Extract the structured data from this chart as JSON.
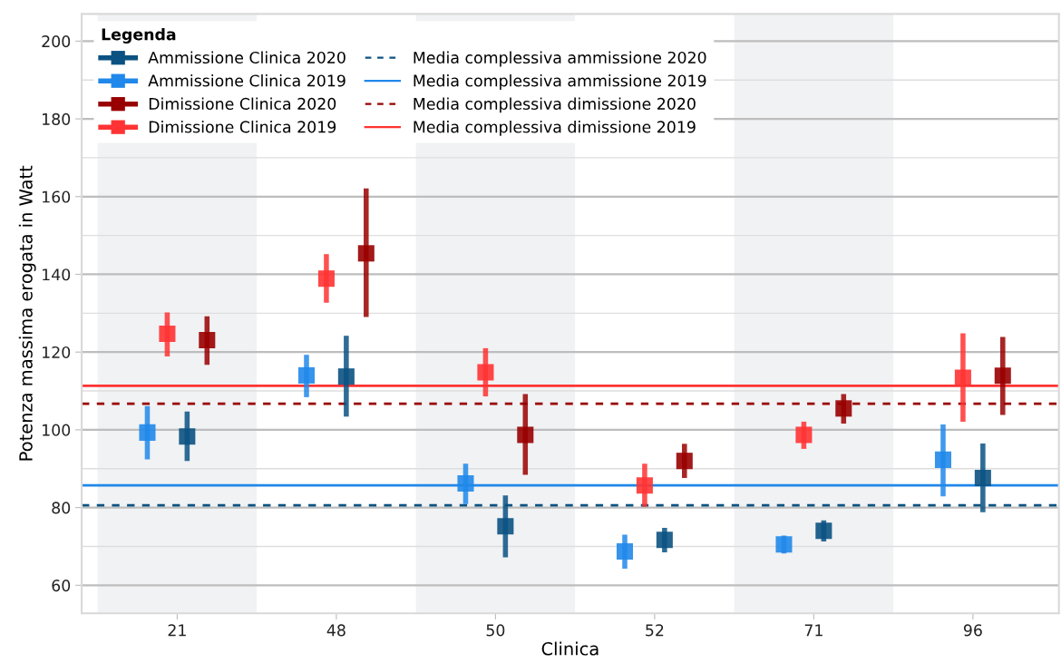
{
  "chart_data": {
    "type": "scatter",
    "xlabel": "Clinica",
    "ylabel": "Potenza massima erogata in Watt",
    "legend_title": "Legenda",
    "categories": [
      "21",
      "48",
      "50",
      "52",
      "71",
      "96"
    ],
    "series": [
      {
        "name": "Ammissione Clinica 2020",
        "color": "#0b5282",
        "values": [
          98.3,
          113.7,
          75.2,
          71.7,
          74.0,
          87.6
        ],
        "errors": [
          [
            92.0,
            104.7
          ],
          [
            103.4,
            124.2
          ],
          [
            67.2,
            83.1
          ],
          [
            68.5,
            74.8
          ],
          [
            71.3,
            76.7
          ],
          [
            78.8,
            96.5
          ]
        ]
      },
      {
        "name": "Ammissione Clinica 2019",
        "color": "#2088ea",
        "values": [
          99.3,
          114.0,
          86.2,
          68.7,
          70.5,
          92.3
        ],
        "errors": [
          [
            92.4,
            106.1
          ],
          [
            108.4,
            119.3
          ],
          [
            80.9,
            91.3
          ],
          [
            64.3,
            73.0
          ],
          [
            68.2,
            72.8
          ],
          [
            82.9,
            101.4
          ]
        ]
      },
      {
        "name": "Dimissione Clinica 2020",
        "color": "#990000",
        "values": [
          123.1,
          145.4,
          98.7,
          92.0,
          105.5,
          113.9
        ],
        "errors": [
          [
            116.7,
            129.2
          ],
          [
            129.0,
            162.1
          ],
          [
            88.4,
            109.2
          ],
          [
            87.6,
            96.4
          ],
          [
            101.6,
            109.2
          ],
          [
            103.8,
            123.9
          ]
        ]
      },
      {
        "name": "Dimissione Clinica 2019",
        "color": "#ff3333",
        "values": [
          124.7,
          138.9,
          114.8,
          85.7,
          98.7,
          113.4
        ],
        "errors": [
          [
            118.9,
            130.2
          ],
          [
            132.7,
            145.2
          ],
          [
            108.6,
            121.0
          ],
          [
            80.2,
            91.3
          ],
          [
            95.1,
            102.1
          ],
          [
            102.1,
            124.8
          ]
        ]
      }
    ],
    "ref_lines": [
      {
        "axis": "y",
        "value": 80.6,
        "label": "Media complessiva ammissione 2020",
        "color": "#0b5282",
        "line_style": "dashed"
      },
      {
        "axis": "y",
        "value": 85.7,
        "label": "Media complessiva ammissione 2019",
        "color": "#2088ea",
        "line_style": "solid"
      },
      {
        "axis": "y",
        "value": 106.7,
        "label": "Media complessiva dimissione 2020",
        "color": "#990000",
        "line_style": "dashed"
      },
      {
        "axis": "y",
        "value": 111.3,
        "label": "Media complessiva dimissione 2019",
        "color": "#ff3333",
        "line_style": "solid"
      }
    ],
    "bands": [
      {
        "axis": "x",
        "from": "21",
        "to": "21",
        "color": "#f1f2f4"
      },
      {
        "axis": "x",
        "from": "50",
        "to": "50",
        "color": "#f1f2f4"
      },
      {
        "axis": "x",
        "from": "71",
        "to": "71",
        "color": "#f1f2f4"
      }
    ],
    "ylim": [
      52.8,
      207
    ],
    "yticks": [
      60,
      80,
      100,
      120,
      140,
      160,
      180,
      200
    ],
    "grid": "y",
    "legend": "top left",
    "marker": "square"
  }
}
